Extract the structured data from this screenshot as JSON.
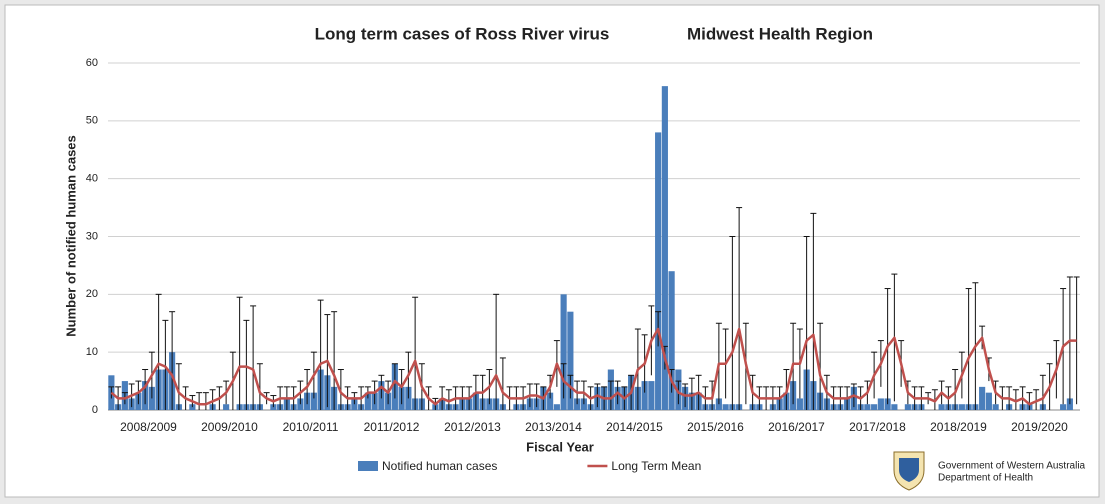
{
  "chart_data": {
    "type": "bar",
    "title": "Long term cases of Ross River virus",
    "subtitle": "Midwest Health Region",
    "x_label": "Fiscal Year",
    "y_label": "Number of notified human cases",
    "ylim": [
      0,
      60
    ],
    "yticks": [
      0,
      10,
      20,
      30,
      40,
      50,
      60
    ],
    "grid": true,
    "legend": "bottom",
    "logo_text": [
      "Government of Western Australia",
      "Department of Health"
    ],
    "categories": [
      null,
      null,
      null,
      null,
      null,
      null,
      "2008/2009",
      null,
      null,
      null,
      null,
      null,
      null,
      null,
      null,
      null,
      null,
      null,
      "2009/2010",
      null,
      null,
      null,
      null,
      null,
      null,
      null,
      null,
      null,
      null,
      null,
      "2010/2011",
      null,
      null,
      null,
      null,
      null,
      null,
      null,
      null,
      null,
      null,
      null,
      "2011/2012",
      null,
      null,
      null,
      null,
      null,
      null,
      null,
      null,
      null,
      null,
      null,
      "2012/2013",
      null,
      null,
      null,
      null,
      null,
      null,
      null,
      null,
      null,
      null,
      null,
      "2013/2014",
      null,
      null,
      null,
      null,
      null,
      null,
      null,
      null,
      null,
      null,
      null,
      "2014/2015",
      null,
      null,
      null,
      null,
      null,
      null,
      null,
      null,
      null,
      null,
      null,
      "2015/2016",
      null,
      null,
      null,
      null,
      null,
      null,
      null,
      null,
      null,
      null,
      null,
      "2016/2017",
      null,
      null,
      null,
      null,
      null,
      null,
      null,
      null,
      null,
      null,
      null,
      "2017/2018",
      null,
      null,
      null,
      null,
      null,
      null,
      null,
      null,
      null,
      null,
      null,
      "2018/2019",
      null,
      null,
      null,
      null,
      null,
      null,
      null,
      null,
      null,
      null,
      null,
      "2019/2020",
      null,
      null,
      null,
      null,
      null
    ],
    "series": [
      {
        "name": "Notified human cases",
        "type": "bar",
        "color": "#4a7ebb",
        "values": [
          6,
          1,
          5,
          2,
          3,
          5,
          4,
          7,
          7,
          10,
          1,
          0,
          1,
          0,
          0,
          1,
          0,
          1,
          0,
          1,
          1,
          1,
          1,
          0,
          1,
          1,
          2,
          1,
          2,
          3,
          3,
          7,
          6,
          4,
          1,
          1,
          2,
          1,
          3,
          3,
          5,
          3,
          8,
          4,
          4,
          2,
          2,
          0,
          1,
          2,
          1,
          1,
          2,
          2,
          3,
          2,
          2,
          2,
          1,
          0,
          1,
          1,
          2,
          2,
          4,
          3,
          1,
          20,
          17,
          2,
          2,
          1,
          4,
          4,
          7,
          4,
          4,
          6,
          4,
          5,
          5,
          48,
          56,
          24,
          7,
          4,
          3,
          3,
          1,
          1,
          2,
          1,
          1,
          1,
          0,
          1,
          1,
          0,
          1,
          2,
          3,
          5,
          2,
          7,
          5,
          3,
          2,
          1,
          1,
          2,
          4,
          1,
          1,
          1,
          2,
          2,
          1,
          0,
          1,
          1,
          1,
          0,
          0,
          1,
          1,
          1,
          1,
          1,
          1,
          4,
          3,
          1,
          0,
          1,
          0,
          1,
          1,
          0,
          1,
          0,
          0,
          1,
          2,
          0
        ]
      },
      {
        "name": "Long Term Mean",
        "type": "line",
        "color": "#c0504d",
        "values": [
          3,
          2,
          2,
          2.5,
          3,
          4,
          6,
          8,
          7.5,
          6,
          3,
          2,
          1.5,
          1,
          1,
          1.5,
          2,
          3,
          5,
          7.5,
          7.5,
          7,
          3,
          2,
          1.5,
          2,
          2,
          2,
          3,
          4,
          6,
          8,
          8.5,
          6,
          3,
          2,
          2,
          2,
          3,
          3,
          4,
          3,
          5,
          4,
          6,
          8.5,
          4,
          2,
          1,
          2,
          1.5,
          2,
          2,
          2,
          3,
          3,
          4,
          6,
          3,
          2,
          2,
          2,
          2.5,
          2.5,
          2,
          4,
          8,
          5,
          4,
          3,
          3,
          2,
          2.5,
          2,
          2,
          3,
          2,
          3,
          7,
          8,
          12,
          14,
          9,
          5,
          3,
          2.5,
          2.5,
          3,
          2,
          2,
          8,
          8,
          10,
          14,
          8,
          3,
          2,
          2,
          2,
          2,
          3,
          8,
          8,
          12,
          13,
          6,
          3,
          2,
          2,
          2,
          2.5,
          2,
          3,
          6,
          8,
          11,
          12.5,
          8,
          3,
          2,
          2,
          2,
          1.5,
          3,
          2,
          3,
          6,
          9,
          11,
          12.5,
          7,
          3,
          2,
          2,
          1.5,
          2,
          1,
          1.5,
          2,
          4,
          7,
          11,
          12,
          12
        ],
        "errors": [
          1,
          2,
          1,
          2,
          2,
          3,
          4,
          12,
          8,
          11,
          5,
          2,
          1,
          2,
          2,
          2,
          2,
          2,
          5,
          12,
          8,
          11,
          5,
          1,
          1,
          2,
          2,
          2,
          2,
          3,
          4,
          11,
          8,
          11,
          4,
          2,
          1,
          2,
          1,
          2,
          2,
          2,
          3,
          3,
          4,
          11,
          4,
          2,
          1,
          2,
          2,
          2,
          2,
          2,
          3,
          3,
          3,
          14,
          6,
          2,
          2,
          2,
          2,
          2,
          2,
          2,
          4,
          3,
          2,
          2,
          2,
          2,
          2,
          2,
          3,
          2,
          2,
          3,
          7,
          5,
          6,
          3,
          2,
          2,
          2,
          2,
          3,
          3,
          2,
          3,
          7,
          6,
          20,
          21,
          7,
          3,
          2,
          2,
          2,
          2,
          4,
          7,
          6,
          18,
          21,
          9,
          3,
          2,
          2,
          2,
          2,
          2,
          2,
          4,
          4,
          10,
          11,
          4,
          2,
          2,
          2,
          1,
          2,
          2,
          2,
          4,
          4,
          12,
          11,
          2,
          2,
          2,
          2,
          2,
          2,
          2,
          2,
          2,
          4,
          4,
          5,
          10,
          11,
          11
        ]
      }
    ]
  }
}
